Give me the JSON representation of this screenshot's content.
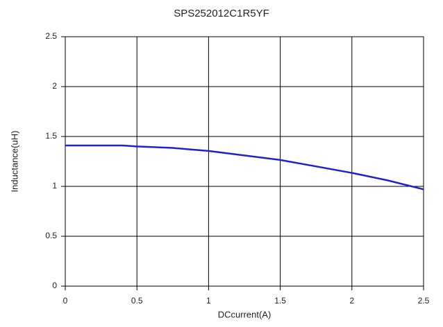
{
  "chart_data": {
    "type": "line",
    "title": "SPS252012C1R5YF",
    "x_label": "DCcurrent(A)",
    "y_label": "Inductance(uH)",
    "x": [
      0,
      0.25,
      0.4,
      0.5,
      0.75,
      1,
      1.25,
      1.5,
      1.75,
      2,
      2.25,
      2.5
    ],
    "series": [
      {
        "name": "Inductance",
        "color": "#1f1fd6",
        "values": [
          1.41,
          1.41,
          1.41,
          1.4,
          1.385,
          1.355,
          1.31,
          1.265,
          1.2,
          1.135,
          1.06,
          0.97
        ]
      }
    ],
    "xlim": [
      0,
      2.5
    ],
    "xticks": [
      0,
      0.5,
      1,
      1.5,
      2,
      2.5
    ],
    "ylim": [
      0,
      2.5
    ],
    "yticks": [
      0,
      0.5,
      1,
      1.5,
      2,
      2.5
    ],
    "grid": true
  }
}
